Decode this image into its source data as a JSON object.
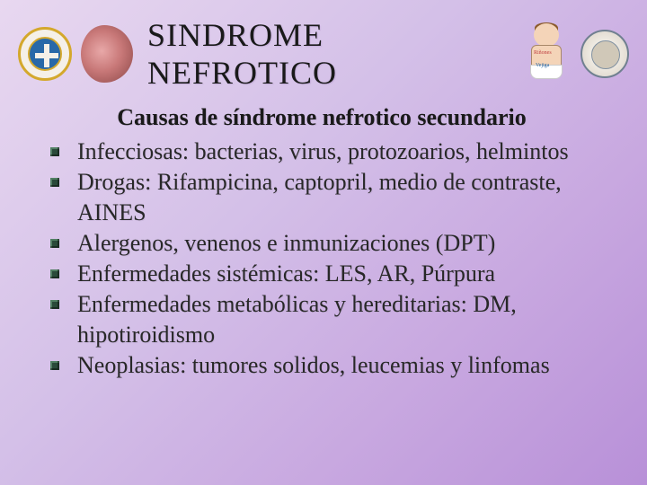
{
  "header": {
    "title": "SINDROME NEFROTICO",
    "baby_labels": {
      "kidneys": "Riñones",
      "bladder": "Vejiga"
    }
  },
  "content": {
    "subtitle": "Causas de síndrome nefrotico secundario",
    "bullets": [
      "Infecciosas: bacterias, virus, protozoarios, helmintos",
      "Drogas: Rifampicina, captopril, medio de contraste, AINES",
      "Alergenos, venenos e inmunizaciones (DPT)",
      "Enfermedades sistémicas: LES, AR, Púrpura",
      "Enfermedades metabólicas y hereditarias: DM, hipotiroidismo",
      "Neoplasias: tumores solidos, leucemias y linfomas"
    ]
  },
  "style": {
    "title_fontsize": 36,
    "subtitle_fontsize": 26,
    "bullet_fontsize": 26,
    "bullet_marker_color": "#2a4a3a",
    "text_color": "#1a1a1a",
    "background_gradient": [
      "#e8d8f0",
      "#d4c0e8",
      "#c8a8e0",
      "#b890d8"
    ]
  }
}
